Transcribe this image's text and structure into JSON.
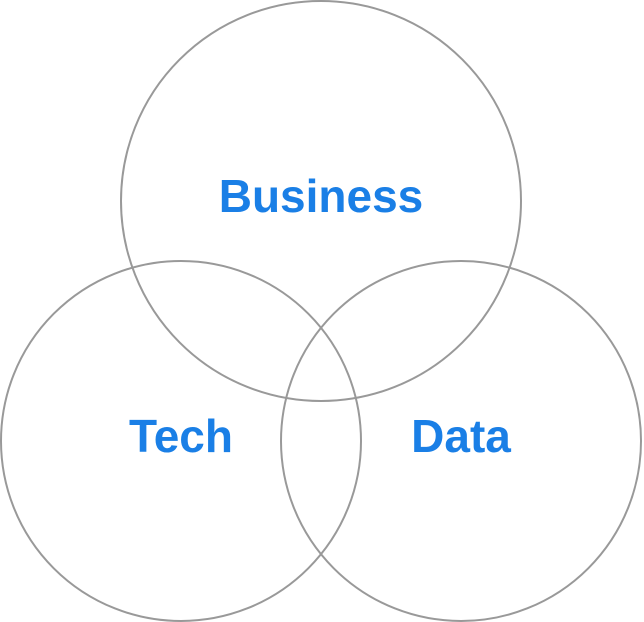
{
  "diagram": {
    "type": "venn",
    "sets": [
      {
        "label": "Business"
      },
      {
        "label": "Tech"
      },
      {
        "label": "Data"
      }
    ],
    "colors": {
      "outline": "#999999",
      "label": "#1a7fe6",
      "background": "#ffffff"
    }
  }
}
